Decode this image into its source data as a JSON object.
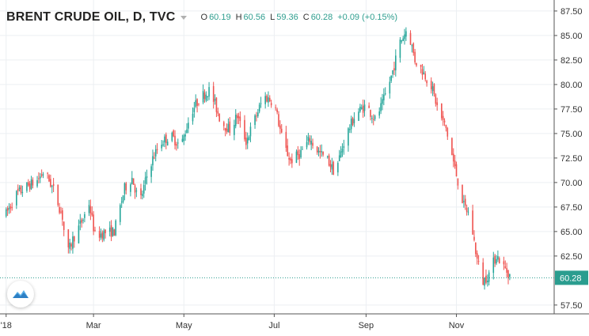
{
  "header": {
    "symbol": "BRENT CRUDE OIL, D, TVC",
    "ohlc": [
      {
        "key": "O",
        "value": "60.19"
      },
      {
        "key": "H",
        "value": "60.56"
      },
      {
        "key": "L",
        "value": "59.36"
      },
      {
        "key": "C",
        "value": "60.28"
      }
    ],
    "change": "+0.09 (+0.15%)"
  },
  "colors": {
    "up": "#26a69a",
    "down": "#ef5350",
    "grid": "#eceff2",
    "text": "#333333",
    "price_line": "#2a9d8f"
  },
  "chart_data": {
    "type": "candlestick",
    "title": "BRENT CRUDE OIL, D, TVC",
    "y_ticks": [
      "87.50",
      "85.00",
      "82.50",
      "80.00",
      "77.50",
      "75.00",
      "72.50",
      "70.00",
      "67.50",
      "65.00",
      "62.50",
      "57.50"
    ],
    "ylim": [
      56.6,
      88.3
    ],
    "x_ticks": [
      {
        "label": "'18",
        "day": 0
      },
      {
        "label": "Mar",
        "day": 59
      },
      {
        "label": "May",
        "day": 120
      },
      {
        "label": "Jul",
        "day": 181
      },
      {
        "label": "Sep",
        "day": 243
      },
      {
        "label": "Nov",
        "day": 304
      }
    ],
    "x_range_days": [
      -2,
      370
    ],
    "last_price": 60.28,
    "grid": true,
    "anchors": [
      [
        0,
        66.8
      ],
      [
        7,
        68.8
      ],
      [
        14,
        69.6
      ],
      [
        21,
        70.2
      ],
      [
        26,
        71.2
      ],
      [
        33,
        68.9
      ],
      [
        38,
        66.5
      ],
      [
        41,
        62.5
      ],
      [
        45,
        64.2
      ],
      [
        52,
        66.3
      ],
      [
        56,
        67.9
      ],
      [
        60,
        64.6
      ],
      [
        67,
        64.9
      ],
      [
        73,
        65.0
      ],
      [
        80,
        69.4
      ],
      [
        85,
        70.5
      ],
      [
        90,
        67.8
      ],
      [
        97,
        71.8
      ],
      [
        104,
        74.0
      ],
      [
        111,
        74.8
      ],
      [
        118,
        73.7
      ],
      [
        125,
        77.2
      ],
      [
        131,
        78.7
      ],
      [
        137,
        79.4
      ],
      [
        141,
        78.0
      ],
      [
        145,
        76.2
      ],
      [
        151,
        75.4
      ],
      [
        156,
        76.8
      ],
      [
        162,
        74.2
      ],
      [
        168,
        76.5
      ],
      [
        174,
        78.8
      ],
      [
        181,
        78.2
      ],
      [
        187,
        74.0
      ],
      [
        192,
        72.2
      ],
      [
        198,
        72.9
      ],
      [
        205,
        74.4
      ],
      [
        211,
        73.1
      ],
      [
        217,
        72.3
      ],
      [
        222,
        71.0
      ],
      [
        229,
        74.6
      ],
      [
        236,
        77.0
      ],
      [
        243,
        77.9
      ],
      [
        249,
        76.4
      ],
      [
        254,
        78.0
      ],
      [
        260,
        80.8
      ],
      [
        266,
        84.3
      ],
      [
        271,
        85.8
      ],
      [
        276,
        82.5
      ],
      [
        281,
        81.4
      ],
      [
        287,
        79.9
      ],
      [
        292,
        77.2
      ],
      [
        297,
        75.5
      ],
      [
        303,
        71.4
      ],
      [
        309,
        67.6
      ],
      [
        313,
        66.7
      ],
      [
        318,
        62.1
      ],
      [
        322,
        59.9
      ],
      [
        326,
        60.7
      ],
      [
        331,
        62.6
      ],
      [
        336,
        61.4
      ],
      [
        341,
        60.28
      ]
    ]
  }
}
